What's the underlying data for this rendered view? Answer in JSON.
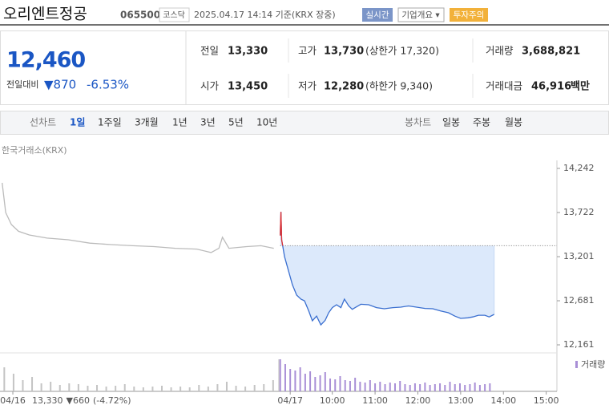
{
  "header": {
    "name": "오리엔트정공",
    "code": "065500",
    "market": "코스닥",
    "timestamp": "2025.04.17 14:14 기준(KRX 장중)",
    "buttons": [
      "실시간",
      "기업개요 ▾",
      "투자주의"
    ]
  },
  "quote": {
    "price": "12,460",
    "change_label": "전일대비",
    "change": "▼870",
    "change_pct": "-6.53%"
  },
  "stats": [
    {
      "label": "전일",
      "value": "13,330"
    },
    {
      "label": "고가",
      "value": "13,730",
      "note": "(상한가 17,320)"
    },
    {
      "label": "거래량",
      "value": "3,688,821"
    },
    {
      "label": "시가",
      "value": "13,450"
    },
    {
      "label": "저가",
      "value": "12,280",
      "note": "(하한가 9,340)"
    },
    {
      "label": "거래대금",
      "value": "46,916",
      "note": "백만"
    }
  ],
  "tabs": {
    "line_label": "선차트",
    "line": [
      "1일",
      "1주일",
      "3개월",
      "1년",
      "3년",
      "5년",
      "10년"
    ],
    "candle_label": "봉차트",
    "candle": [
      "일봉",
      "주봉",
      "월봉"
    ]
  },
  "chart_data": {
    "type": "line",
    "source": "한국거래소(KRX)",
    "xlim": [
      -406,
      375
    ],
    "xticks": [
      {
        "value": -388,
        "label": "04/16"
      },
      {
        "value": 1,
        "label": "04/17"
      },
      {
        "value": 60,
        "label": "10:00"
      },
      {
        "value": 120,
        "label": "11:00"
      },
      {
        "value": 180,
        "label": "12:00"
      },
      {
        "value": 240,
        "label": "13:00"
      },
      {
        "value": 300,
        "label": "14:00"
      },
      {
        "value": 360,
        "label": "15:00"
      }
    ],
    "ylim": [
      12161,
      14242
    ],
    "yticks": [
      {
        "value": 14242,
        "label": "14,242"
      },
      {
        "value": 13722,
        "label": "13,722"
      },
      {
        "value": 13201,
        "label": "13,201"
      },
      {
        "value": 12681,
        "label": "12,681"
      },
      {
        "value": 12161,
        "label": "12,161"
      }
    ],
    "reference": 13330,
    "prev_summary": {
      "close": "13,330",
      "change": "▼660",
      "change_pct": "(-4.72%)"
    },
    "up_color": "#e03131",
    "series": [
      {
        "color": "#bbbbbb",
        "x": [
          -403,
          -398,
          -390,
          -380,
          -365,
          -340,
          -310,
          -280,
          -250,
          -220,
          -190,
          -160,
          -130,
          -110,
          -99,
          -94,
          -85,
          -60,
          -40,
          -22
        ],
        "values": [
          14072,
          13722,
          13580,
          13500,
          13457,
          13420,
          13400,
          13360,
          13343,
          13330,
          13320,
          13300,
          13290,
          13250,
          13300,
          13430,
          13300,
          13320,
          13330,
          13300
        ]
      },
      {
        "color": "#3a6fd0",
        "fill": "#dce9fb",
        "x": [
          -13,
          -12,
          -11,
          -7,
          4,
          10,
          16,
          21,
          27,
          32,
          38,
          44,
          50,
          55,
          60,
          66,
          72,
          77,
          83,
          88,
          100,
          111,
          122,
          133,
          145,
          156,
          167,
          178,
          190,
          201,
          212,
          223,
          232,
          240,
          250,
          257,
          265,
          274,
          280,
          287
        ],
        "values": [
          13450,
          13730,
          13400,
          13201,
          12870,
          12747,
          12700,
          12680,
          12560,
          12445,
          12500,
          12397,
          12450,
          12540,
          12600,
          12634,
          12600,
          12700,
          12620,
          12580,
          12640,
          12634,
          12600,
          12587,
          12600,
          12606,
          12620,
          12606,
          12590,
          12587,
          12560,
          12539,
          12500,
          12473,
          12480,
          12490,
          12510,
          12510,
          12490,
          12520
        ]
      }
    ],
    "volume": {
      "name": "거래량",
      "ylim": [
        0,
        40
      ],
      "series": [
        {
          "color": "#c4c4c4",
          "x": [
            -400,
            -387,
            -374,
            -361,
            -348,
            -335,
            -322,
            -309,
            -296,
            -283,
            -270,
            -257,
            -244,
            -231,
            -218,
            -205,
            -192,
            -179,
            -166,
            -153,
            -140,
            -127,
            -114,
            -101,
            -88,
            -75,
            -62,
            -49,
            -36,
            -23
          ],
          "values": [
            30,
            22,
            14,
            18,
            10,
            12,
            8,
            10,
            9,
            7,
            8,
            6,
            7,
            9,
            6,
            5,
            6,
            7,
            5,
            6,
            5,
            8,
            6,
            9,
            12,
            7,
            6,
            8,
            9,
            14
          ]
        },
        {
          "color": "#a98fd6",
          "x": [
            -13,
            -6,
            1,
            8,
            15,
            22,
            29,
            36,
            43,
            50,
            57,
            64,
            71,
            78,
            85,
            92,
            99,
            106,
            113,
            120,
            127,
            134,
            141,
            148,
            155,
            162,
            169,
            176,
            183,
            190,
            197,
            204,
            211,
            218,
            225,
            232,
            239,
            246,
            253,
            260,
            267,
            274,
            281
          ],
          "values": [
            40,
            34,
            28,
            26,
            30,
            22,
            25,
            18,
            20,
            24,
            16,
            15,
            19,
            14,
            13,
            17,
            12,
            11,
            14,
            10,
            12,
            9,
            11,
            10,
            13,
            9,
            8,
            10,
            9,
            11,
            8,
            9,
            10,
            8,
            12,
            9,
            10,
            8,
            9,
            11,
            8,
            9,
            10
          ]
        }
      ]
    }
  }
}
